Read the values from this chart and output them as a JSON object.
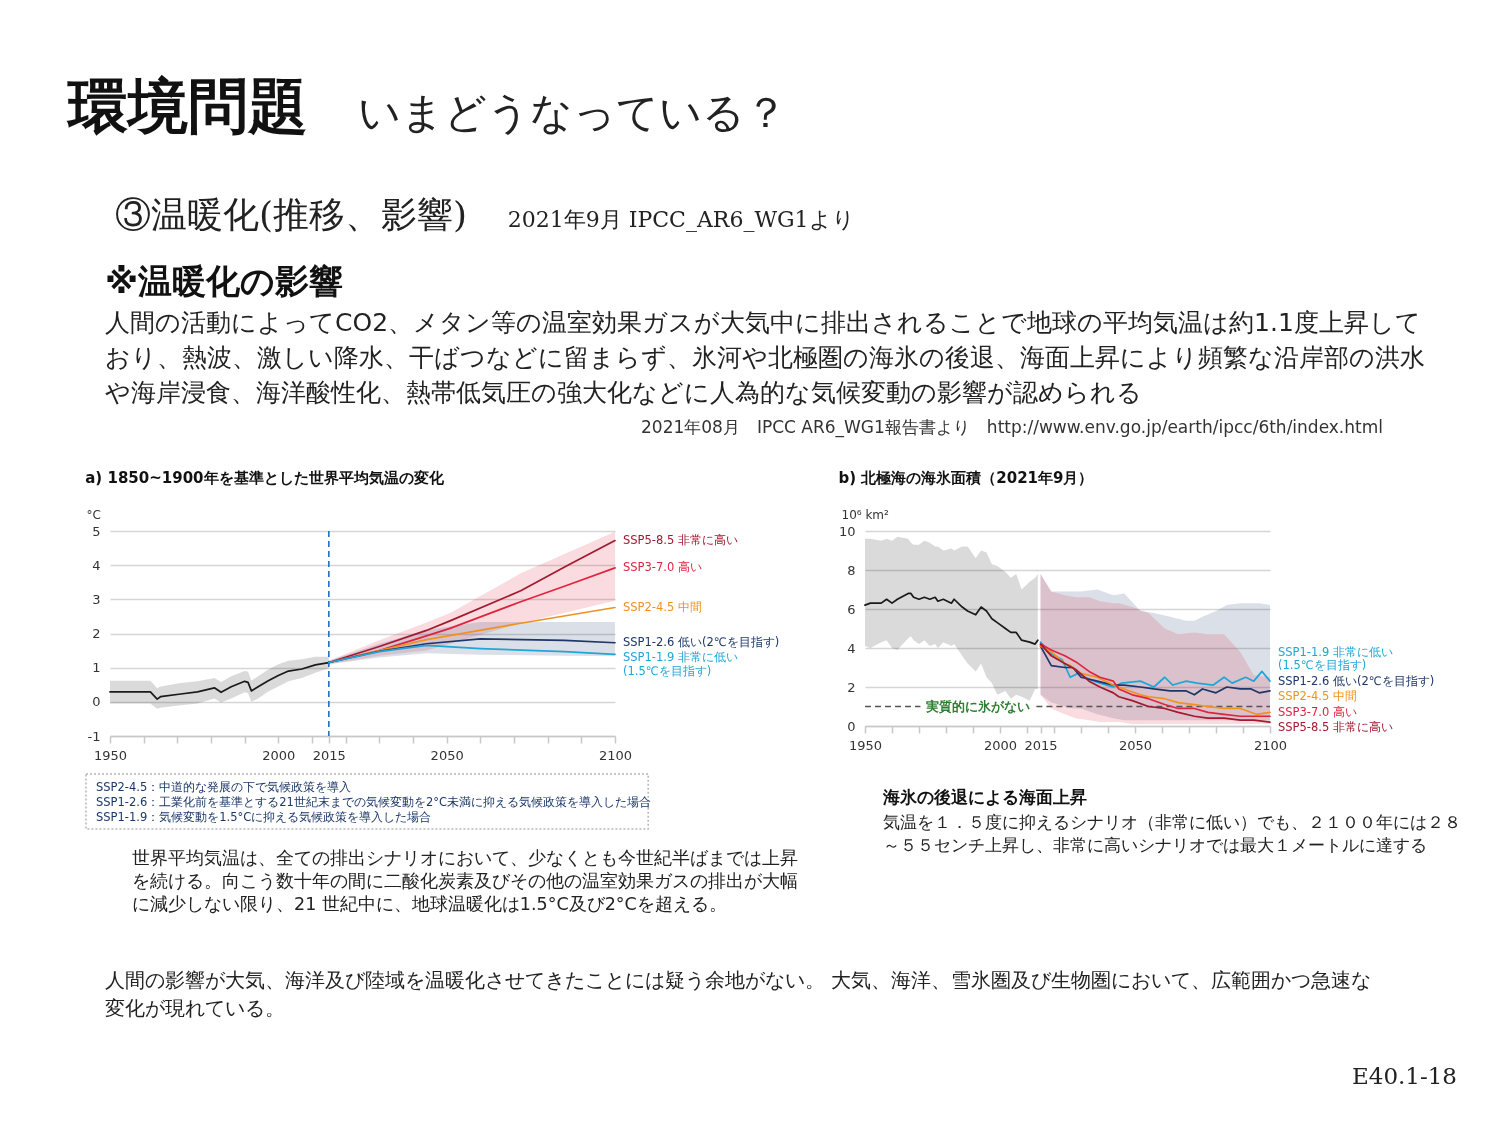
{
  "chart_data": [
    {
      "type": "other",
      "title": "環境問題",
      "subtitle": "いまどうなっている？",
      "annotations": [
        "③温暖化(推移、影響)",
        "2021年9月 IPCC_AR6_WG1より"
      ]
    },
    {
      "type": "other",
      "title": "※温暖化の影響",
      "annotations": [
        "人間の活動によってCO2、メタン等の温室効果ガスが大気中に排出されることで地球の平均気温は約1.1度上昇しており、熱波、激しい降水、干ばつなどに留まらず、氷河や北極圏の海氷の後退、海面上昇により頻繁な沿岸部の洪水や海岸浸食、海洋酸性化、熱帯低気圧の強大化などに人為的な気候変動の影響が認められる",
        "2021年08月　IPCC AR6_WG1報告書より　http://www.env.go.jp/earth/ipcc/6th/index.html"
      ]
    },
    {
      "type": "line",
      "title": "a) 1850~1900年を基準とした世界平均気温の変化",
      "ylabel": "°C",
      "xlim": [
        1950,
        2100
      ],
      "xticks": [
        1950,
        {
          "value": 1960,
          "label": null
        },
        {
          "value": 1970,
          "label": null
        },
        {
          "value": 1980,
          "label": null
        },
        {
          "value": 1990,
          "label": null
        },
        2000,
        {
          "value": 2010,
          "label": null
        },
        2015,
        {
          "value": 2020,
          "label": null
        },
        {
          "value": 2030,
          "label": null
        },
        {
          "value": 2040,
          "label": null
        },
        2050,
        {
          "value": 2060,
          "label": null
        },
        {
          "value": 2070,
          "label": null
        },
        {
          "value": 2080,
          "label": null
        },
        {
          "value": 2090,
          "label": null
        },
        2100
      ],
      "ylim": [
        -1,
        5
      ],
      "yticks": [
        -1,
        0,
        1,
        2,
        3,
        4,
        5
      ],
      "grid": "y",
      "ref_lines": [
        {
          "axis": "x",
          "value": 2015,
          "color": "#1f72c4",
          "line_style": "dashed"
        }
      ],
      "annotations": [
        "SSP2-4.5：中道的な発展の下で気候政策を導入",
        "SSP1-2.6：工業化前を基準とする21世紀末までの気候変動を2°C未満に抑える気候政策を導入した場合",
        "SSP1-1.9：気候変動を1.5°Cに抑える気候政策を導入した場合"
      ],
      "series": [
        {
          "color": "#1a1a1a",
          "x": [
            1950,
            1962,
            1964,
            1965,
            1971,
            1976,
            1981,
            1983,
            1986,
            1990,
            1991,
            1992,
            1994,
            1997,
            2000,
            2003,
            2007,
            2011,
            2015
          ],
          "values": [
            0.29,
            0.29,
            0.08,
            0.15,
            0.23,
            0.29,
            0.41,
            0.28,
            0.44,
            0.6,
            0.57,
            0.32,
            0.44,
            0.62,
            0.77,
            0.9,
            0.96,
            1.08,
            1.15
          ],
          "lower": [
            -0.05,
            -0.05,
            -0.2,
            -0.17,
            -0.1,
            -0.05,
            0.1,
            -0.02,
            0.1,
            0.28,
            0.25,
            0.0,
            0.1,
            0.3,
            0.45,
            0.6,
            0.7,
            0.85,
            0.98
          ],
          "upper": [
            0.62,
            0.62,
            0.4,
            0.45,
            0.55,
            0.6,
            0.7,
            0.58,
            0.75,
            0.9,
            0.88,
            0.62,
            0.75,
            0.95,
            1.1,
            1.2,
            1.25,
            1.32,
            1.32
          ]
        },
        {
          "name": "SSP5-8.5 非常に高い",
          "color": "#a3192e",
          "x": [
            2015,
            2030,
            2044,
            2051,
            2072,
            2086,
            2100
          ],
          "values": [
            1.15,
            1.62,
            2.09,
            2.37,
            3.25,
            4.0,
            4.72
          ]
        },
        {
          "name": "SSP3-7.0 高い",
          "color": "#e0243f",
          "x": [
            2015,
            2030,
            2044,
            2051,
            2072,
            2086,
            2100
          ],
          "values": [
            1.15,
            1.5,
            1.93,
            2.15,
            2.93,
            3.42,
            3.92
          ],
          "lower": [
            1.1,
            1.35,
            1.5,
            1.7,
            2.3,
            2.63,
            2.96
          ],
          "upper": [
            1.2,
            1.8,
            2.32,
            2.6,
            3.76,
            4.37,
            4.98
          ]
        },
        {
          "name": "SSP2-4.5 中間",
          "color": "#f0921e",
          "x": [
            2015,
            2030,
            2044,
            2072,
            2100
          ],
          "values": [
            1.15,
            1.5,
            1.82,
            2.3,
            2.76
          ]
        },
        {
          "name": "SSP1-2.6 低い(2℃を目指す)",
          "color": "#1c3768",
          "x": [
            2015,
            2030,
            2044,
            2060,
            2085,
            2100
          ],
          "values": [
            1.15,
            1.48,
            1.7,
            1.84,
            1.8,
            1.73
          ],
          "lower": [
            1.1,
            1.3,
            1.42,
            1.38,
            1.35,
            1.34
          ],
          "upper": [
            1.2,
            1.7,
            2.1,
            2.34,
            2.34,
            2.34
          ]
        },
        {
          "name": "SSP1-1.9 非常に低い(1.5℃を目指す)",
          "color": "#1fa6d8",
          "x": [
            2015,
            2030,
            2044,
            2060,
            2085,
            2100
          ],
          "values": [
            1.15,
            1.47,
            1.65,
            1.56,
            1.47,
            1.39
          ]
        }
      ]
    },
    {
      "type": "line",
      "title": "b) 北極海の海氷面積（2021年9月）",
      "ylabel": "10⁶ km²",
      "xlim": [
        1950,
        2100
      ],
      "xticks": [
        1950,
        {
          "value": 1960,
          "label": null
        },
        {
          "value": 1970,
          "label": null
        },
        {
          "value": 1980,
          "label": null
        },
        {
          "value": 1990,
          "label": null
        },
        2000,
        {
          "value": 2010,
          "label": null
        },
        2015,
        {
          "value": 2020,
          "label": null
        },
        {
          "value": 2030,
          "label": null
        },
        {
          "value": 2040,
          "label": null
        },
        2050,
        {
          "value": 2060,
          "label": null
        },
        {
          "value": 2070,
          "label": null
        },
        {
          "value": 2080,
          "label": null
        },
        {
          "value": 2090,
          "label": null
        },
        2100
      ],
      "ylim": [
        0,
        10
      ],
      "yticks": [
        0,
        2,
        4,
        6,
        8,
        10
      ],
      "grid": "y",
      "ref_lines": [
        {
          "axis": "y",
          "value": 1,
          "label": "実質的に氷がない",
          "color": "#555555",
          "line_style": "dashed"
        }
      ],
      "series": [
        {
          "color": "#1a1a1a",
          "x": [
            1950,
            1952,
            1956,
            1958,
            1960,
            1962,
            1966,
            1967,
            1968,
            1970,
            1972,
            1974,
            1976,
            1977,
            1979,
            1982,
            1983,
            1986,
            1988,
            1991,
            1993,
            1995,
            1997,
            1999,
            2002,
            2004,
            2006,
            2008,
            2011,
            2013,
            2014
          ],
          "values": [
            6.2,
            6.3,
            6.3,
            6.5,
            6.3,
            6.5,
            6.8,
            6.8,
            6.6,
            6.5,
            6.6,
            6.5,
            6.6,
            6.4,
            6.5,
            6.3,
            6.5,
            6.1,
            5.9,
            5.7,
            6.1,
            5.9,
            5.5,
            5.3,
            5.0,
            4.8,
            4.8,
            4.4,
            4.3,
            4.2,
            4.4
          ],
          "lower": [
            4.1,
            4.0,
            4.3,
            4.4,
            4.0,
            3.9,
            4.5,
            4.6,
            4.4,
            4.2,
            4.4,
            4.1,
            4.2,
            4.0,
            4.3,
            4.1,
            4.2,
            3.6,
            3.2,
            2.8,
            3.2,
            2.5,
            2.2,
            1.6,
            1.8,
            1.4,
            1.6,
            1.5,
            1.3,
            1.9,
            1.9
          ],
          "upper": [
            9.6,
            9.6,
            9.5,
            9.6,
            9.5,
            9.7,
            9.6,
            9.4,
            9.3,
            9.3,
            9.5,
            9.4,
            9.2,
            9.2,
            9.0,
            9.1,
            9.0,
            9.2,
            9.2,
            8.6,
            9.0,
            8.9,
            8.3,
            8.2,
            7.9,
            7.6,
            7.8,
            7.0,
            7.4,
            7.6,
            7.8
          ]
        },
        {
          "name": "SSP1-1.9 非常に低い(1.5℃を目指す)",
          "color": "#1fa6d8",
          "x": [
            2015,
            2019,
            2023,
            2026,
            2029,
            2033,
            2037,
            2042,
            2045,
            2052,
            2057,
            2061,
            2064,
            2069,
            2073,
            2079,
            2083,
            2086,
            2091,
            2094,
            2097,
            2100
          ],
          "values": [
            4.3,
            3.7,
            3.4,
            2.5,
            2.7,
            2.4,
            2.2,
            2.0,
            2.2,
            2.3,
            2.0,
            2.5,
            2.1,
            2.3,
            2.2,
            2.1,
            2.5,
            2.2,
            2.5,
            2.3,
            2.8,
            2.3
          ]
        },
        {
          "name": "SSP1-2.6 低い(2℃を目指す)",
          "color": "#1c3768",
          "x": [
            2015,
            2019,
            2024,
            2027,
            2030,
            2036,
            2042,
            2046,
            2052,
            2057,
            2063,
            2069,
            2072,
            2075,
            2080,
            2084,
            2089,
            2093,
            2096,
            2100
          ],
          "values": [
            4.1,
            3.1,
            3.0,
            3.0,
            2.5,
            2.3,
            2.1,
            2.1,
            2.0,
            1.9,
            1.8,
            1.8,
            1.6,
            1.9,
            1.7,
            2.0,
            1.9,
            1.9,
            1.7,
            1.8
          ],
          "lower": [
            1.6,
            1.2,
            1.0,
            0.9,
            0.9,
            0.6,
            0.4,
            0.3,
            0.3,
            0.3,
            0.3,
            0.3,
            0.3,
            0.3,
            0.3,
            0.3,
            0.3,
            0.3,
            0.3,
            0.3
          ],
          "upper": [
            7.8,
            6.9,
            6.9,
            6.9,
            6.9,
            7.0,
            6.7,
            6.8,
            5.9,
            5.8,
            5.6,
            5.4,
            5.4,
            5.6,
            5.9,
            6.2,
            6.3,
            6.3,
            6.3,
            6.2
          ]
        },
        {
          "name": "SSP2-4.5 中間",
          "color": "#f0921e",
          "x": [
            2015,
            2019,
            2024,
            2026,
            2030,
            2036,
            2042,
            2046,
            2052,
            2055,
            2061,
            2066,
            2072,
            2077,
            2083,
            2089,
            2095,
            2100
          ],
          "values": [
            4.1,
            3.8,
            3.2,
            3.1,
            2.7,
            2.5,
            2.1,
            1.9,
            1.6,
            1.5,
            1.4,
            1.2,
            1.1,
            1.0,
            0.9,
            0.9,
            0.6,
            0.7
          ]
        },
        {
          "name": "SSP3-7.0 高い",
          "color": "#e0243f",
          "x": [
            2015,
            2019,
            2024,
            2028,
            2033,
            2037,
            2042,
            2044,
            2049,
            2055,
            2061,
            2066,
            2072,
            2077,
            2083,
            2089,
            2094,
            2100
          ],
          "values": [
            4.2,
            3.9,
            3.6,
            3.3,
            2.8,
            2.5,
            2.3,
            1.9,
            1.6,
            1.4,
            1.1,
            0.9,
            0.9,
            0.7,
            0.6,
            0.5,
            0.5,
            0.5
          ],
          "lower": [
            1.6,
            0.9,
            0.6,
            0.4,
            0.3,
            0.2,
            0.2,
            0.2,
            0.1,
            0.1,
            0.1,
            0.1,
            0.1,
            0.1,
            0.1,
            0.1,
            0.1,
            0.1
          ],
          "upper": [
            7.8,
            6.9,
            6.7,
            6.6,
            6.6,
            6.4,
            6.3,
            6.3,
            6.1,
            5.8,
            5.0,
            4.7,
            4.8,
            4.7,
            4.7,
            3.8,
            2.6,
            2.5
          ]
        },
        {
          "name": "SSP5-8.5 非常に高い",
          "color": "#a3192e",
          "x": [
            2015,
            2019,
            2024,
            2028,
            2033,
            2037,
            2042,
            2044,
            2049,
            2055,
            2061,
            2066,
            2072,
            2077,
            2083,
            2089,
            2094,
            2100
          ],
          "values": [
            4.2,
            3.6,
            3.2,
            2.9,
            2.3,
            2.0,
            1.7,
            1.5,
            1.3,
            1.0,
            0.9,
            0.7,
            0.5,
            0.4,
            0.4,
            0.3,
            0.3,
            0.2
          ]
        }
      ]
    },
    {
      "type": "other",
      "annotations": [
        "世界平均気温は、全ての排出シナリオにおいて、少なくとも今世紀半ばまでは上昇を続ける。向こう数十年の間に二酸化炭素及びその他の温室効果ガスの排出が大幅に減少しない限り、21 世紀中に、地球温暖化は1.5°C及び2°Cを超える。"
      ]
    },
    {
      "type": "other",
      "title": "海氷の後退による海面上昇",
      "annotations": [
        "気温を１．５度に抑えるシナリオ（非常に低い）でも、２１００年には２８～５５センチ上昇し、非常に高いシナリオでは最大１メートルに達する"
      ]
    },
    {
      "type": "other",
      "annotations": [
        "人間の影響が大気、海洋及び陸域を温暖化させてきたことには疑う余地がない。 大気、海洋、雪氷圏及び生物圏において、広範囲かつ急速な変化が現れている。",
        "E40.1-18"
      ]
    }
  ]
}
